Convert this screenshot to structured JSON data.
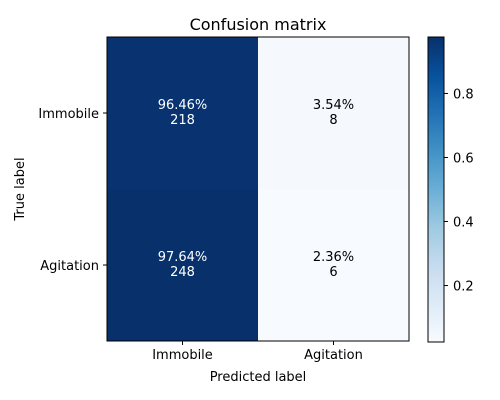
{
  "chart_data": {
    "type": "heatmap",
    "title": "Confusion matrix",
    "xlabel": "Predicted label",
    "ylabel": "True label",
    "x_categories": [
      "Immobile",
      "Agitation"
    ],
    "y_categories": [
      "Immobile",
      "Agitation"
    ],
    "values": [
      [
        0.9646,
        0.0354
      ],
      [
        0.9764,
        0.0236
      ]
    ],
    "cell_labels": [
      [
        "96.46%\n218",
        "3.54%\n8"
      ],
      [
        "97.64%\n248",
        "2.36%\n6"
      ]
    ],
    "colorbar": {
      "colormap": "Blues",
      "range": [
        0.0236,
        0.9764
      ],
      "ticks": [
        0.2,
        0.4,
        0.6,
        0.8
      ],
      "tick_labels": [
        "0.2",
        "0.4",
        "0.6",
        "0.8"
      ],
      "low_color": "#f7fbff",
      "high_color": "#08306b"
    }
  }
}
